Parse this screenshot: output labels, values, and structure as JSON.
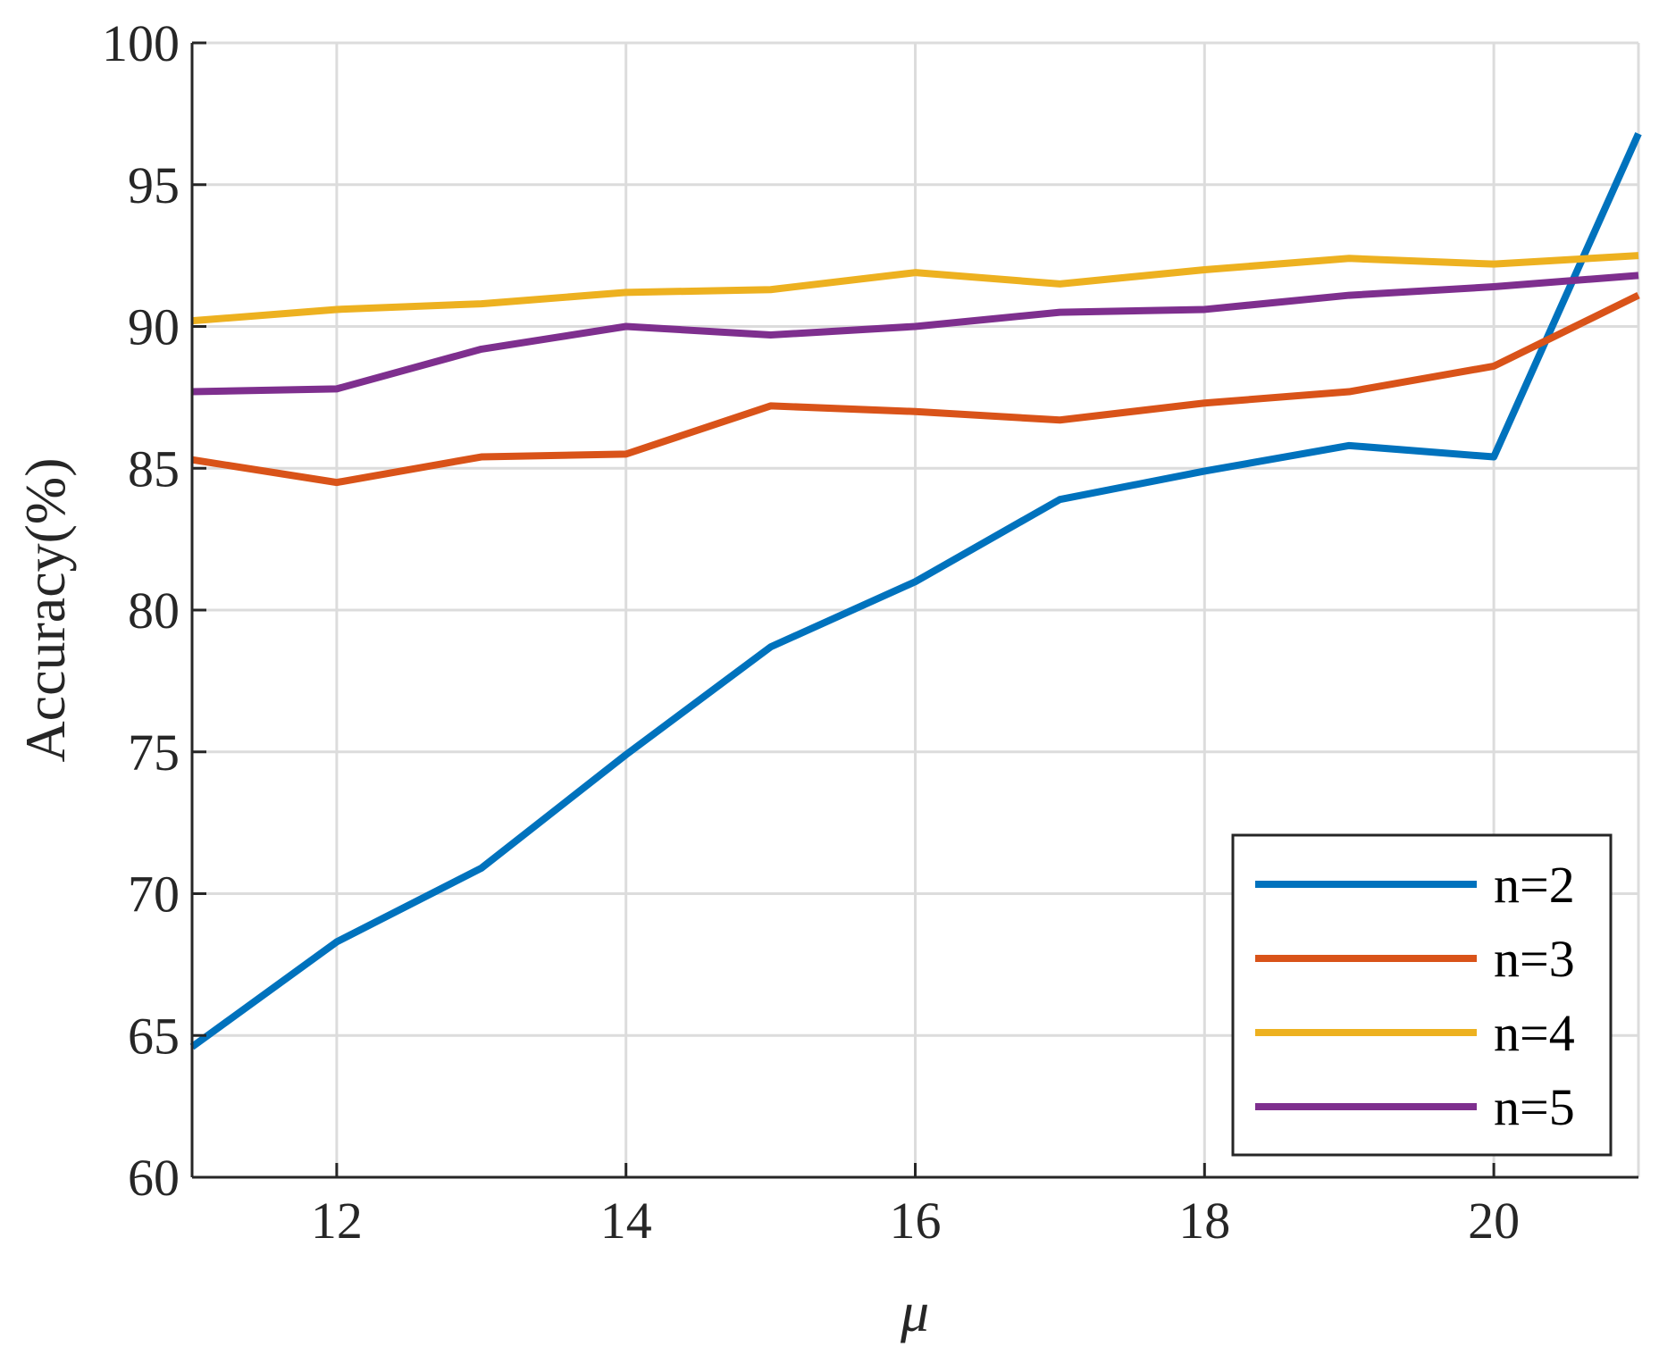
{
  "chart_data": {
    "type": "line",
    "title": "",
    "xlabel": "μ",
    "ylabel": "Accuracy(%)",
    "xlim": [
      11,
      21
    ],
    "ylim": [
      60,
      100
    ],
    "xticks": [
      12,
      14,
      16,
      18,
      20
    ],
    "yticks": [
      60,
      65,
      70,
      75,
      80,
      85,
      90,
      95,
      100
    ],
    "grid": true,
    "legend_position": "bottom-right",
    "x": [
      11,
      12,
      13,
      14,
      15,
      16,
      17,
      18,
      19,
      20,
      21
    ],
    "series": [
      {
        "name": "n=2",
        "color": "#0072BD",
        "values": [
          64.6,
          68.3,
          70.9,
          74.9,
          78.7,
          81.0,
          83.9,
          84.9,
          85.8,
          85.4,
          96.8
        ]
      },
      {
        "name": "n=3",
        "color": "#D95319",
        "values": [
          85.3,
          84.5,
          85.4,
          85.5,
          87.2,
          87.0,
          86.7,
          87.3,
          87.7,
          88.6,
          91.1
        ]
      },
      {
        "name": "n=4",
        "color": "#EDB120",
        "values": [
          90.2,
          90.6,
          90.8,
          91.2,
          91.3,
          91.9,
          91.5,
          92.0,
          92.4,
          92.2,
          92.5
        ]
      },
      {
        "name": "n=5",
        "color": "#7E2F8E",
        "values": [
          87.7,
          87.8,
          89.2,
          90.0,
          89.7,
          90.0,
          90.5,
          90.6,
          91.1,
          91.4,
          91.8
        ]
      }
    ]
  }
}
